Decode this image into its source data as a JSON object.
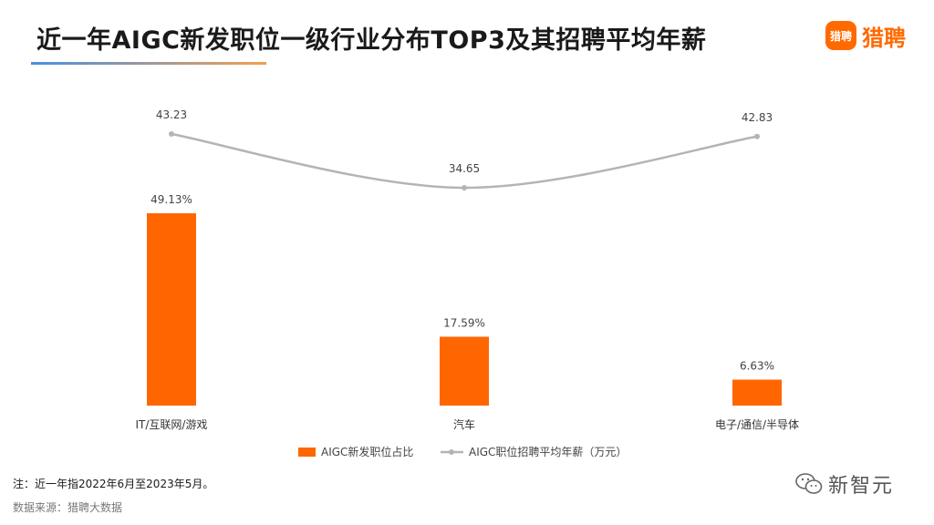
{
  "header": {
    "title": "近一年AIGC新发职位一级行业分布TOP3及其招聘平均年薪",
    "brand_icon_text": "猎聘",
    "brand_name": "猎聘"
  },
  "footer": {
    "note": "注：近一年指2022年6月至2023年5月。",
    "source": "数据来源：猎聘大数据",
    "watermark": "新智元"
  },
  "colors": {
    "bar": "#ff6600",
    "line": "#b4b4b4",
    "brand": "#ff6a00"
  },
  "chart_data": {
    "type": "bar",
    "categories": [
      "IT/互联网/游戏",
      "汽车",
      "电子/通信/半导体"
    ],
    "series": [
      {
        "name": "AIGC新发职位占比",
        "type": "bar",
        "values": [
          49.13,
          17.59,
          6.63
        ],
        "labels": [
          "49.13%",
          "17.59%",
          "6.63%"
        ]
      },
      {
        "name": "AIGC职位招聘平均年薪（万元）",
        "type": "line",
        "values": [
          43.23,
          34.65,
          42.83
        ],
        "labels": [
          "43.23",
          "34.65",
          "42.83"
        ]
      }
    ],
    "legend_position": "bottom-center",
    "grid": false
  }
}
